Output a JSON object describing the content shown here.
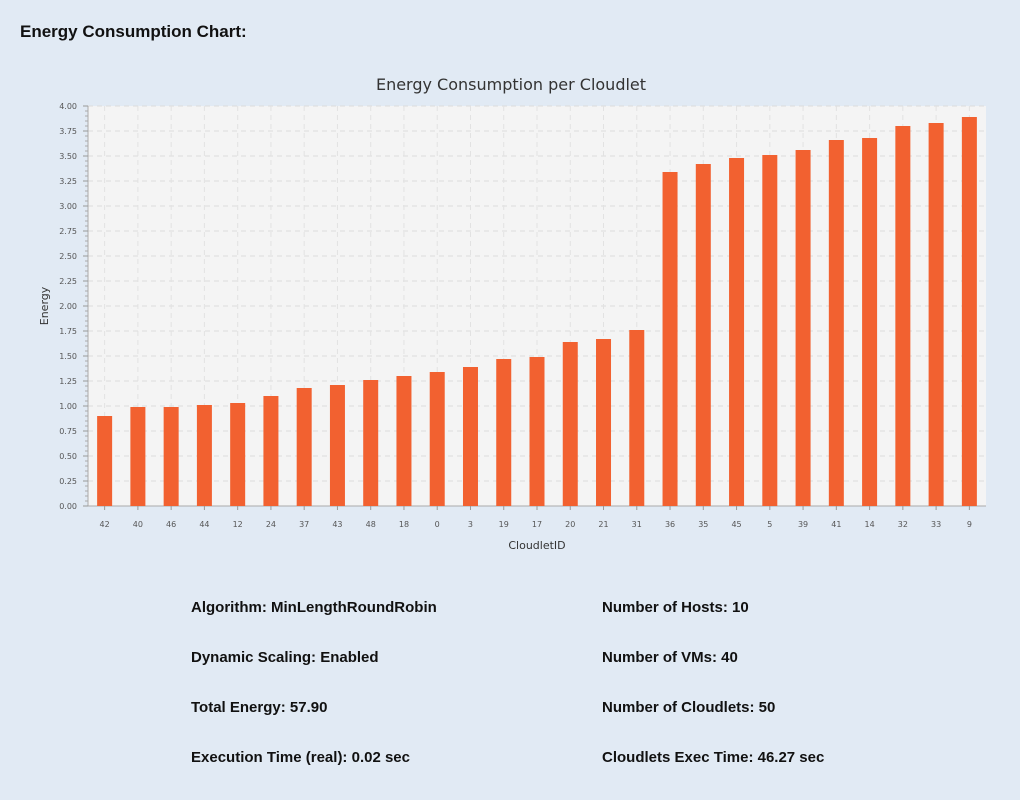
{
  "page": {
    "heading": "Energy Consumption Chart:"
  },
  "chart_data": {
    "type": "bar",
    "title": "Energy Consumption per Cloudlet",
    "xlabel": "CloudletID",
    "ylabel": "Energy",
    "ylim": [
      0,
      4
    ],
    "ytick_step": 0.25,
    "ytick_labels": [
      "0.00",
      "0.25",
      "0.50",
      "0.75",
      "1.00",
      "1.25",
      "1.50",
      "1.75",
      "2.00",
      "2.25",
      "2.50",
      "2.75",
      "3.00",
      "3.25",
      "3.50",
      "3.75",
      "4.00"
    ],
    "grid": true,
    "legend": "none",
    "bar_color": "#f26130",
    "plot_background": "#f4f4f4",
    "categories": [
      "42",
      "40",
      "46",
      "44",
      "12",
      "24",
      "37",
      "43",
      "48",
      "18",
      "0",
      "3",
      "19",
      "17",
      "20",
      "21",
      "31",
      "36",
      "35",
      "45",
      "5",
      "39",
      "41",
      "14",
      "32",
      "33",
      "9"
    ],
    "values": [
      0.9,
      0.99,
      0.99,
      1.01,
      1.03,
      1.1,
      1.18,
      1.21,
      1.26,
      1.3,
      1.34,
      1.39,
      1.47,
      1.49,
      1.64,
      1.67,
      1.76,
      3.34,
      3.42,
      3.48,
      3.51,
      3.56,
      3.66,
      3.68,
      3.8,
      3.83,
      3.89
    ]
  },
  "stats": {
    "left": [
      "Algorithm: MinLengthRoundRobin",
      "Dynamic Scaling: Enabled",
      "Total Energy: 57.90",
      "Execution Time (real): 0.02 sec"
    ],
    "right": [
      "Number of Hosts: 10",
      "Number of VMs: 40",
      "Number of Cloudlets: 50",
      "Cloudlets Exec Time: 46.27 sec"
    ]
  }
}
